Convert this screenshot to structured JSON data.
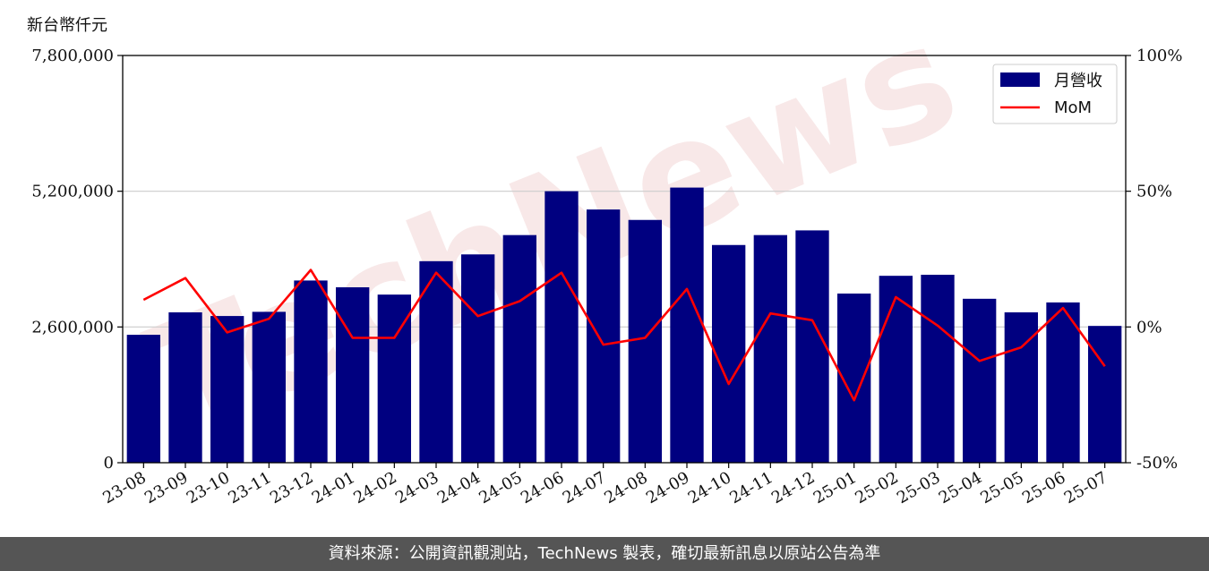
{
  "unit_label": "新台幣仟元",
  "footer_text": "資料來源：公開資訊觀測站，TechNews 製表，確切最新訊息以原站公告為準",
  "watermark_text": "TechNews",
  "chart_data": {
    "type": "bar",
    "categories": [
      "23-08",
      "23-09",
      "23-10",
      "23-11",
      "23-12",
      "24-01",
      "24-02",
      "24-03",
      "24-04",
      "24-05",
      "24-06",
      "24-07",
      "24-08",
      "24-09",
      "24-10",
      "24-11",
      "24-12",
      "25-01",
      "25-02",
      "25-03",
      "25-04",
      "25-05",
      "25-06",
      "25-07"
    ],
    "series": [
      {
        "name": "月營收",
        "type": "bar",
        "axis": "left",
        "color": "#000080",
        "values": [
          2450000,
          2880000,
          2810000,
          2890000,
          3490000,
          3360000,
          3220000,
          3860000,
          3990000,
          4360000,
          5200000,
          4850000,
          4650000,
          5270000,
          4170000,
          4360000,
          4450000,
          3240000,
          3580000,
          3600000,
          3140000,
          2880000,
          3070000,
          2620000
        ]
      },
      {
        "name": "MoM",
        "type": "line",
        "axis": "right",
        "color": "#ff0000",
        "values": [
          10,
          18,
          -2,
          3,
          21,
          -4,
          -4,
          20,
          4,
          9.5,
          20,
          -6.5,
          -4,
          14,
          -21,
          5,
          2.5,
          -27,
          11,
          0.5,
          -12.5,
          -7.5,
          7,
          -14.5
        ]
      }
    ],
    "y_left": {
      "min": 0,
      "max": 7800000,
      "ticks": [
        "0",
        "2,600,000",
        "5,200,000",
        "7,800,000"
      ],
      "tick_values": [
        0,
        2600000,
        5200000,
        7800000
      ]
    },
    "y_right": {
      "min": -50,
      "max": 100,
      "ticks": [
        "-50%",
        "0%",
        "50%",
        "100%"
      ],
      "tick_values": [
        -50,
        0,
        50,
        100
      ]
    },
    "grid": true,
    "legend": "top-right",
    "colors": {
      "bar": "#000080",
      "line": "#ff0000",
      "grid": "#cccccc"
    }
  }
}
